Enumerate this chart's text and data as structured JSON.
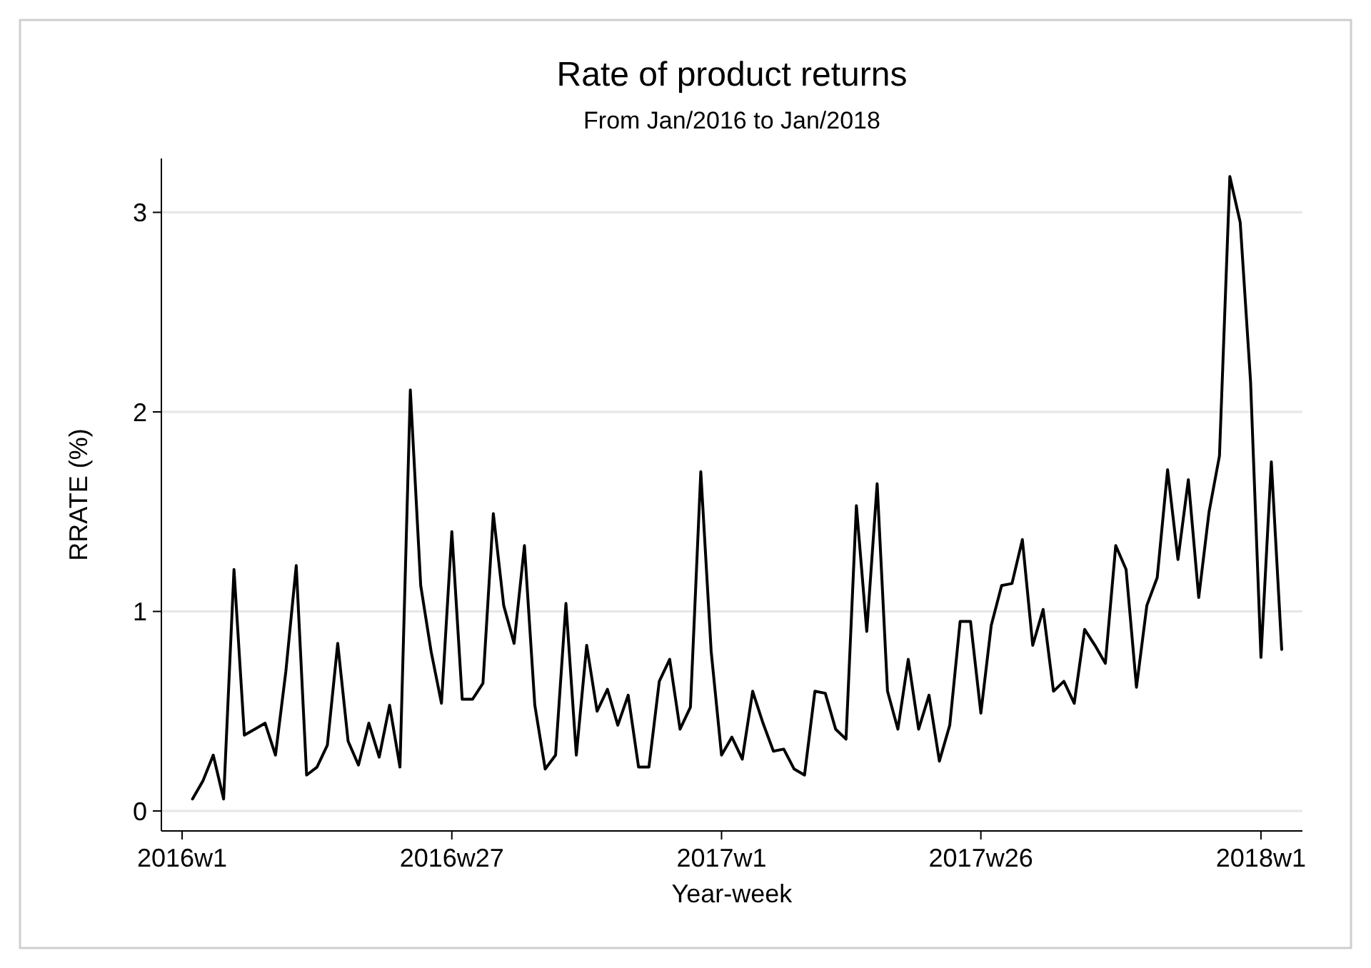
{
  "chart_data": {
    "type": "line",
    "title": "Rate of product returns",
    "subtitle": "From Jan/2016 to Jan/2018",
    "xlabel": "Year-week",
    "ylabel": "RRATE (%)",
    "categories": [
      "2016w1",
      null,
      null,
      null,
      null,
      null,
      null,
      null,
      null,
      null,
      null,
      null,
      null,
      null,
      null,
      null,
      null,
      null,
      null,
      null,
      null,
      null,
      null,
      null,
      null,
      null,
      "2016w27",
      null,
      null,
      null,
      null,
      null,
      null,
      null,
      null,
      null,
      null,
      null,
      null,
      null,
      null,
      null,
      null,
      null,
      null,
      null,
      null,
      null,
      null,
      null,
      null,
      null,
      "2017w1",
      null,
      null,
      null,
      null,
      null,
      null,
      null,
      null,
      null,
      null,
      null,
      null,
      null,
      null,
      null,
      null,
      null,
      null,
      null,
      null,
      null,
      null,
      null,
      null,
      "2017w26",
      null,
      null,
      null,
      null,
      null,
      null,
      null,
      null,
      null,
      null,
      null,
      null,
      null,
      null,
      null,
      null,
      null,
      null,
      null,
      null,
      null,
      null,
      null,
      null,
      null,
      null,
      "2018w1",
      null,
      null
    ],
    "series": [
      {
        "color": "#000000",
        "values": [
          null,
          0.06,
          0.15,
          0.28,
          0.06,
          1.21,
          0.38,
          0.41,
          0.44,
          0.28,
          0.7,
          1.23,
          0.18,
          0.22,
          0.33,
          0.84,
          0.35,
          0.23,
          0.44,
          0.27,
          0.53,
          0.22,
          2.11,
          1.13,
          0.8,
          0.54,
          1.4,
          0.56,
          0.56,
          0.64,
          1.49,
          1.03,
          0.84,
          1.33,
          0.53,
          0.21,
          0.28,
          1.04,
          0.28,
          0.83,
          0.5,
          0.61,
          0.43,
          0.58,
          0.22,
          0.22,
          0.65,
          0.76,
          0.41,
          0.52,
          1.7,
          0.8,
          0.28,
          0.37,
          0.26,
          0.6,
          0.44,
          0.3,
          0.31,
          0.21,
          0.18,
          0.6,
          0.59,
          0.41,
          0.36,
          1.53,
          0.9,
          1.64,
          0.6,
          0.41,
          0.76,
          0.41,
          0.58,
          0.25,
          0.43,
          0.95,
          0.95,
          0.49,
          0.93,
          1.13,
          1.14,
          1.36,
          0.83,
          1.01,
          0.6,
          0.65,
          0.54,
          0.91,
          0.83,
          0.74,
          1.33,
          1.21,
          0.62,
          1.03,
          1.17,
          1.71,
          1.26,
          1.66,
          1.07,
          1.5,
          1.78,
          3.18,
          2.95,
          2.15,
          0.77,
          1.75,
          0.81
        ]
      }
    ],
    "ylim": [
      -0.1,
      3.27
    ],
    "yticks": [
      0,
      1,
      2,
      3
    ],
    "grid": "y",
    "marker": "none",
    "line_style": "solid"
  }
}
